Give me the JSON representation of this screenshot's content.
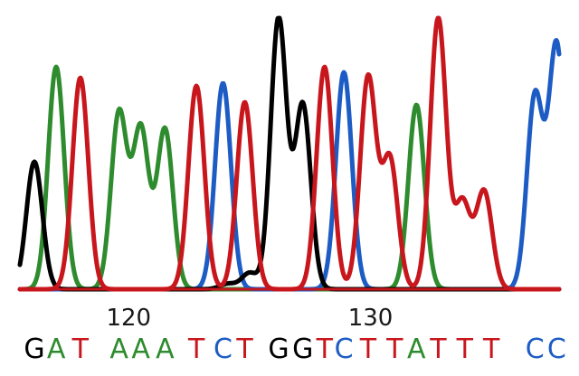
{
  "chart_data": {
    "type": "line",
    "title": "",
    "xlabel": "",
    "ylabel": "",
    "xlim": [
      115.5,
      137.8
    ],
    "ylim": [
      0,
      100
    ],
    "grid": false,
    "legend": "none",
    "colors": {
      "A": "#2e8b2e",
      "C": "#1d5cc4",
      "G": "#000000",
      "T": "#c8161d"
    },
    "x_ticks": [
      {
        "value": 120,
        "label": "120"
      },
      {
        "value": 130,
        "label": "130"
      }
    ],
    "series": [
      {
        "base": "A",
        "color": "#2e8b2e",
        "peaks": [
          {
            "x": 117.0,
            "y": 82
          },
          {
            "x": 119.6,
            "y": 65
          },
          {
            "x": 120.5,
            "y": 59
          },
          {
            "x": 121.5,
            "y": 59
          },
          {
            "x": 131.9,
            "y": 68
          }
        ]
      },
      {
        "base": "C",
        "color": "#1d5cc4",
        "peaks": [
          {
            "x": 123.9,
            "y": 76
          },
          {
            "x": 128.9,
            "y": 80
          },
          {
            "x": 136.8,
            "y": 71
          },
          {
            "x": 137.7,
            "y": 90
          }
        ]
      },
      {
        "base": "G",
        "color": "#000000",
        "peaks": [
          {
            "x": 116.1,
            "y": 47
          },
          {
            "x": 126.2,
            "y": 100
          },
          {
            "x": 127.2,
            "y": 68
          },
          {
            "x": 125.0,
            "y": 6
          },
          {
            "x": 124.1,
            "y": 2
          }
        ]
      },
      {
        "base": "T",
        "color": "#c8161d",
        "peaks": [
          {
            "x": 118.0,
            "y": 78
          },
          {
            "x": 122.8,
            "y": 75
          },
          {
            "x": 124.8,
            "y": 69
          },
          {
            "x": 128.1,
            "y": 82
          },
          {
            "x": 129.9,
            "y": 78
          },
          {
            "x": 130.8,
            "y": 48
          },
          {
            "x": 132.8,
            "y": 100
          },
          {
            "x": 133.8,
            "y": 32
          },
          {
            "x": 134.7,
            "y": 36
          }
        ]
      }
    ],
    "sequence": [
      {
        "base": "G",
        "x": 116.1
      },
      {
        "base": "A",
        "x": 117.0
      },
      {
        "base": "T",
        "x": 118.0
      },
      {
        "base": "A",
        "x": 119.6
      },
      {
        "base": "A",
        "x": 120.5
      },
      {
        "base": "A",
        "x": 121.5
      },
      {
        "base": "T",
        "x": 122.8
      },
      {
        "base": "C",
        "x": 123.9
      },
      {
        "base": "T",
        "x": 124.8
      },
      {
        "base": "G",
        "x": 126.2
      },
      {
        "base": "G",
        "x": 127.2
      },
      {
        "base": "T",
        "x": 128.1
      },
      {
        "base": "C",
        "x": 128.9
      },
      {
        "base": "T",
        "x": 129.9
      },
      {
        "base": "T",
        "x": 131.0
      },
      {
        "base": "A",
        "x": 131.9
      },
      {
        "base": "T",
        "x": 132.8
      },
      {
        "base": "T",
        "x": 133.9
      },
      {
        "base": "T",
        "x": 135.0
      },
      {
        "base": "C",
        "x": 136.8
      },
      {
        "base": "C",
        "x": 137.7
      }
    ]
  }
}
